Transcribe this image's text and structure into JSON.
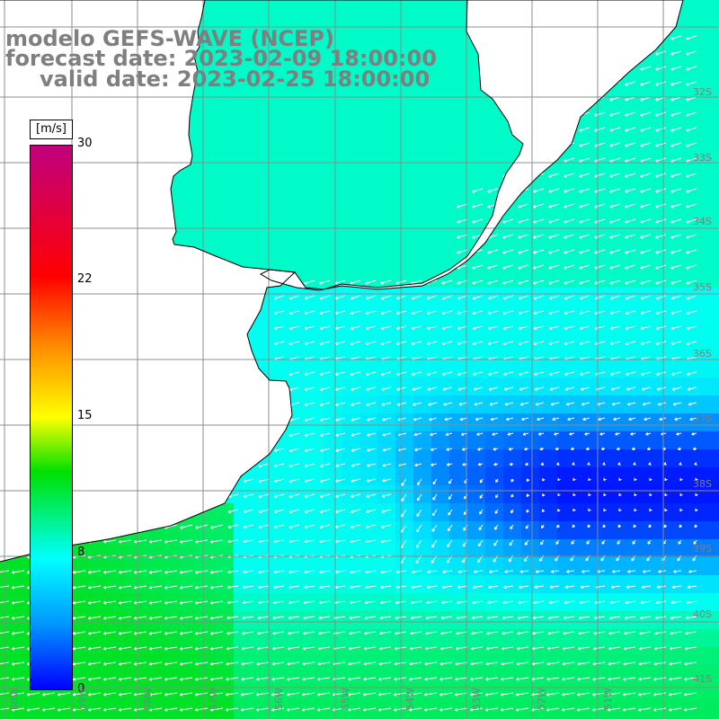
{
  "title": {
    "line1": "modelo GEFS-WAVE (NCEP)",
    "line2": "forecast date: 2023-02-09 18:00:00",
    "line3": "valid date: 2023-02-25 18:00:00"
  },
  "colorbar": {
    "unit": "[m/s]",
    "ticks": [
      "30",
      "22",
      "15",
      "8",
      "0"
    ],
    "colors": [
      "#0000ff",
      "#0096ff",
      "#00ffff",
      "#00e000",
      "#ffff00",
      "#ff8c00",
      "#ff0000",
      "#c00080"
    ]
  },
  "lat_labels": [
    "32S",
    "33S",
    "34S",
    "35S",
    "36S",
    "37S",
    "38S",
    "39S",
    "40S",
    "41S"
  ],
  "lon_labels": [
    "60W",
    "59W",
    "58W",
    "57W",
    "56W",
    "55W",
    "54W",
    "53W",
    "52W",
    "51W"
  ],
  "colors": {
    "land": "#ffffff",
    "coast": "#000000",
    "grid": "#8c8c8c",
    "arrows": "#ffffff",
    "title": "#7f7f7f"
  }
}
